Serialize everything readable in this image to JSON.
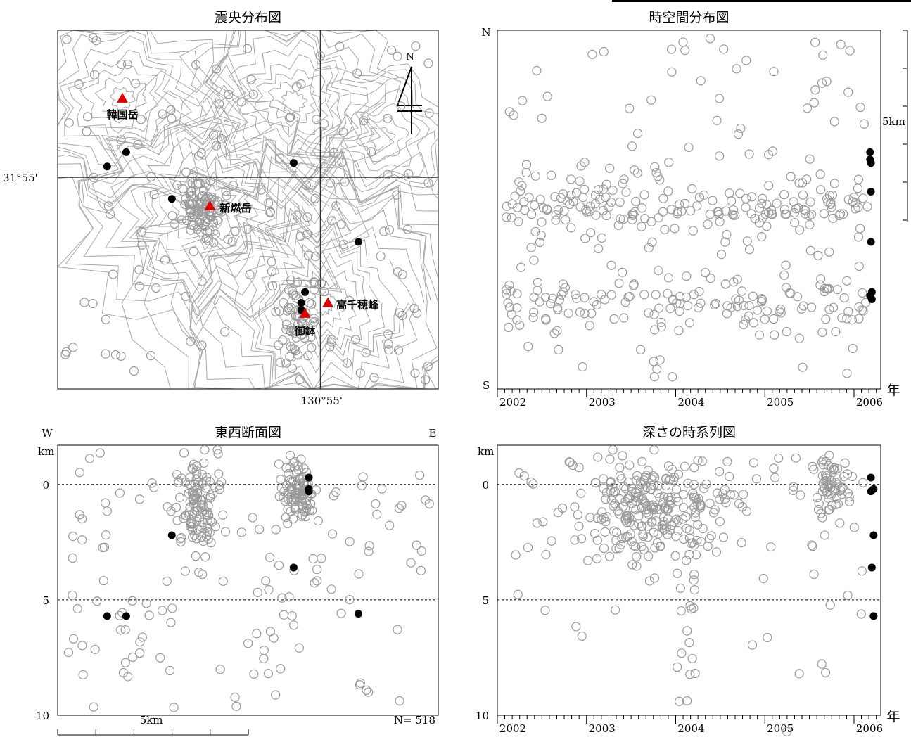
{
  "colors": {
    "hollow": "#9a9a9a",
    "solid": "#000000",
    "volcano": "#e00000",
    "contour": "#a8a8a8"
  },
  "chart_data": [
    {
      "type": "scatter",
      "title": "震央分布図",
      "lat_label": "31°55'",
      "lon_label": "130°55'",
      "north_label": "N",
      "volcanoes": [
        {
          "name": "韓国岳",
          "x": 0.17,
          "y": 0.19
        },
        {
          "name": "新燃岳",
          "x": 0.4,
          "y": 0.49
        },
        {
          "name": "御鉢",
          "x": 0.65,
          "y": 0.79
        },
        {
          "name": "高千穂峰",
          "x": 0.71,
          "y": 0.76
        }
      ],
      "clusters": [
        {
          "cx": 0.38,
          "cy": 0.5,
          "sx": 0.035,
          "sy": 0.045,
          "n": 90
        },
        {
          "cx": 0.63,
          "cy": 0.82,
          "sx": 0.025,
          "sy": 0.05,
          "n": 60
        }
      ],
      "recent": [
        [
          0.13,
          0.38
        ],
        [
          0.18,
          0.34
        ],
        [
          0.3,
          0.47
        ],
        [
          0.62,
          0.37
        ],
        [
          0.79,
          0.59
        ],
        [
          0.64,
          0.76
        ],
        [
          0.65,
          0.73
        ],
        [
          0.64,
          0.78
        ]
      ]
    },
    {
      "type": "scatter",
      "title": "時空間分布図",
      "xlabel": "年",
      "ylabel_top": "N",
      "ylabel_bottom": "S",
      "scale_label": "5km",
      "x_ticks": [
        "2002",
        "2003",
        "2004",
        "2005",
        "2006"
      ],
      "xlim": [
        2002,
        2006.3
      ],
      "bands": [
        {
          "yc": 0.49,
          "sy": 0.05,
          "n": 170
        },
        {
          "yc": 0.76,
          "sy": 0.04,
          "n": 120
        }
      ],
      "recent": [
        [
          2006.18,
          0.34
        ],
        [
          2006.18,
          0.36
        ],
        [
          2006.19,
          0.37
        ],
        [
          2006.19,
          0.45
        ],
        [
          2006.19,
          0.59
        ],
        [
          2006.18,
          0.74
        ],
        [
          2006.2,
          0.75
        ],
        [
          2006.2,
          0.73
        ]
      ]
    },
    {
      "type": "scatter",
      "title": "東西断面図",
      "xlabel_left": "W",
      "xlabel_right": "E",
      "ylabel": "km",
      "y_ticks": [
        "0",
        "5",
        "10"
      ],
      "ylim": [
        -1.7,
        10
      ],
      "scale_label": "5km",
      "count_label": "N= 518",
      "clusters": [
        {
          "cx": 0.37,
          "cy": 0.9,
          "sx": 0.025,
          "sy": 1.1,
          "n": 110
        },
        {
          "cx": 0.63,
          "cy": 0.2,
          "sx": 0.022,
          "sy": 0.6,
          "n": 90
        }
      ],
      "recent": [
        [
          0.66,
          -0.3
        ],
        [
          0.66,
          0.3
        ],
        [
          0.66,
          0.2
        ],
        [
          0.3,
          2.2
        ],
        [
          0.62,
          3.6
        ],
        [
          0.13,
          5.7
        ],
        [
          0.18,
          5.7
        ],
        [
          0.79,
          5.6
        ]
      ]
    },
    {
      "type": "scatter",
      "title": "深さの時系列図",
      "xlabel": "年",
      "ylabel": "km",
      "y_ticks": [
        "0",
        "5",
        "10"
      ],
      "ylim": [
        -1.7,
        10
      ],
      "x_ticks": [
        "2002",
        "2003",
        "2004",
        "2005",
        "2006"
      ],
      "xlim": [
        2002,
        2006.3
      ],
      "bands": [
        {
          "xc": 2003.7,
          "sx": 0.35,
          "yc": 1.0,
          "sy": 1.0,
          "n": 200
        },
        {
          "xc": 2005.75,
          "sx": 0.1,
          "yc": 0.3,
          "sy": 0.7,
          "n": 50
        }
      ],
      "recent": [
        [
          2006.19,
          -0.3
        ],
        [
          2006.19,
          0.3
        ],
        [
          2006.22,
          0.2
        ],
        [
          2006.22,
          2.2
        ],
        [
          2006.2,
          3.6
        ],
        [
          2006.22,
          5.7
        ]
      ]
    }
  ]
}
